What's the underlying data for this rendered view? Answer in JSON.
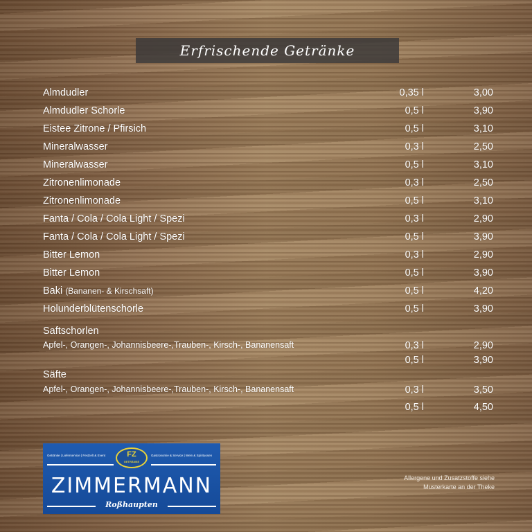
{
  "title": "Erfrischende Getränke",
  "items": [
    {
      "name": "Almdudler",
      "volume": "0,35 l",
      "price": "3,00"
    },
    {
      "name": "Almdudler Schorle",
      "volume": "0,5 l",
      "price": "3,90"
    },
    {
      "name": "Eistee Zitrone / Pfirsich",
      "volume": "0,5 l",
      "price": "3,10"
    },
    {
      "name": "Mineralwasser",
      "volume": "0,3 l",
      "price": "2,50"
    },
    {
      "name": "Mineralwasser",
      "volume": "0,5 l",
      "price": "3,10"
    },
    {
      "name": "Zitronenlimonade",
      "volume": "0,3 l",
      "price": "2,50"
    },
    {
      "name": "Zitronenlimonade",
      "volume": "0,5 l",
      "price": "3,10"
    },
    {
      "name": "Fanta / Cola / Cola Light / Spezi",
      "volume": "0,3 l",
      "price": "2,90"
    },
    {
      "name": "Fanta / Cola / Cola Light / Spezi",
      "volume": "0,5 l",
      "price": "3,90"
    },
    {
      "name": "Bitter Lemon",
      "volume": "0,3 l",
      "price": "2,90"
    },
    {
      "name": "Bitter Lemon",
      "volume": "0,5 l",
      "price": "3,90"
    },
    {
      "name": "Baki",
      "note": "(Bananen- & Kirschsaft)",
      "volume": "0,5 l",
      "price": "4,20"
    },
    {
      "name": "Holunderblütenschorle",
      "volume": "0,5 l",
      "price": "3,90"
    }
  ],
  "saftschorlen": {
    "heading": "Saftschorlen",
    "desc": "Apfel-, Orangen-, Johannisbeere-,Trauben-, Kirsch-, Bananensaft",
    "sizes": [
      {
        "volume": "0,3 l",
        "price": "2,90"
      },
      {
        "volume": "0,5 l",
        "price": "3,90"
      }
    ]
  },
  "saefte": {
    "heading": "Säfte",
    "desc": "Apfel-, Orangen-, Johannisbeere-,Trauben-, Kirsch-, Bananensaft",
    "sizes": [
      {
        "volume": "0,3 l",
        "price": "3,50"
      },
      {
        "volume": "0,5 l",
        "price": "4,50"
      }
    ]
  },
  "logo": {
    "name": "ZIMMERMANN",
    "city": "Roßhaupten",
    "badge": "FZ",
    "badge_sub": "GETRÄNKE",
    "left_tag": "Getränke | Lieferservice | Festzelt & Event",
    "right_tag": "Gastronomie & Service | Wein & Spirituosen",
    "color": "#1f5bb0"
  },
  "note": {
    "line1": "Allergene und Zusatzstoffe siehe",
    "line2": "Musterkarte an der Theke"
  }
}
